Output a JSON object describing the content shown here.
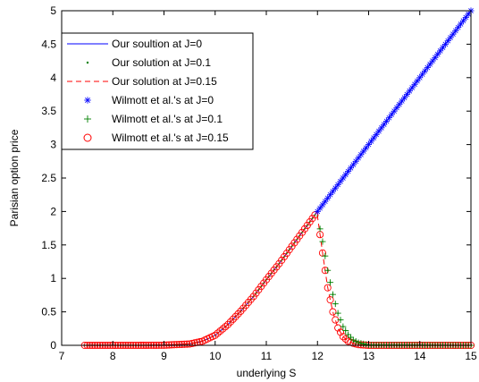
{
  "chart_data": {
    "type": "line",
    "title": "",
    "xlabel": "underlying S",
    "ylabel": "Parisian option price",
    "xlim": [
      7,
      15
    ],
    "ylim": [
      0,
      5
    ],
    "xticks": [
      "7",
      "8",
      "9",
      "10",
      "11",
      "12",
      "13",
      "14",
      "15"
    ],
    "yticks": [
      "0",
      "0.5",
      "1",
      "1.5",
      "2",
      "2.5",
      "3",
      "3.5",
      "4",
      "4.5",
      "5"
    ],
    "grid": false,
    "legend_position": "top-left",
    "colors": {
      "blue": "#0000ff",
      "green": "#008000",
      "red": "#ff0000",
      "axis": "#000000"
    },
    "legend": [
      {
        "label": "Our soultion at J=0",
        "marker": "solid-line",
        "color": "#0000ff"
      },
      {
        "label": "Our solution at J=0.1",
        "marker": "dot",
        "color": "#008000"
      },
      {
        "label": "Our solution at J=0.15",
        "marker": "dashed-line",
        "color": "#ff0000"
      },
      {
        "label": "Wilmott et al.'s at J=0",
        "marker": "asterisk",
        "color": "#0000ff"
      },
      {
        "label": "Wilmott et al.'s at J=0.1",
        "marker": "plus",
        "color": "#008000"
      },
      {
        "label": "Wilmott et al.'s at J=0.15",
        "marker": "circle",
        "color": "#ff0000"
      }
    ],
    "curve_samples": {
      "x_above_barrier": [
        12.0,
        13.0,
        14.0,
        15.0
      ],
      "y_above_barrier_J0": [
        2.0,
        3.0,
        4.0,
        5.0
      ],
      "x_below_barrier": [
        7.5,
        8.0,
        8.5,
        9.0,
        9.5,
        9.75,
        10.0,
        10.25,
        10.5,
        10.75,
        11.0,
        11.25,
        11.5,
        11.75,
        12.0
      ],
      "y_below_barrier": [
        0.0,
        0.0,
        0.0,
        0.002,
        0.02,
        0.06,
        0.15,
        0.31,
        0.51,
        0.73,
        0.98,
        1.22,
        1.48,
        1.74,
        2.0
      ],
      "x_decay": [
        12.0,
        12.1,
        12.2,
        12.3,
        12.4,
        12.5,
        12.6,
        12.7,
        12.8,
        13.0,
        15.0
      ],
      "y_decay_J0.1": [
        1.93,
        1.55,
        1.12,
        0.76,
        0.48,
        0.28,
        0.16,
        0.08,
        0.04,
        0.005,
        0.0
      ],
      "y_decay_J0.15": [
        1.93,
        1.38,
        0.86,
        0.5,
        0.26,
        0.13,
        0.06,
        0.03,
        0.01,
        0.0,
        0.0
      ]
    }
  }
}
